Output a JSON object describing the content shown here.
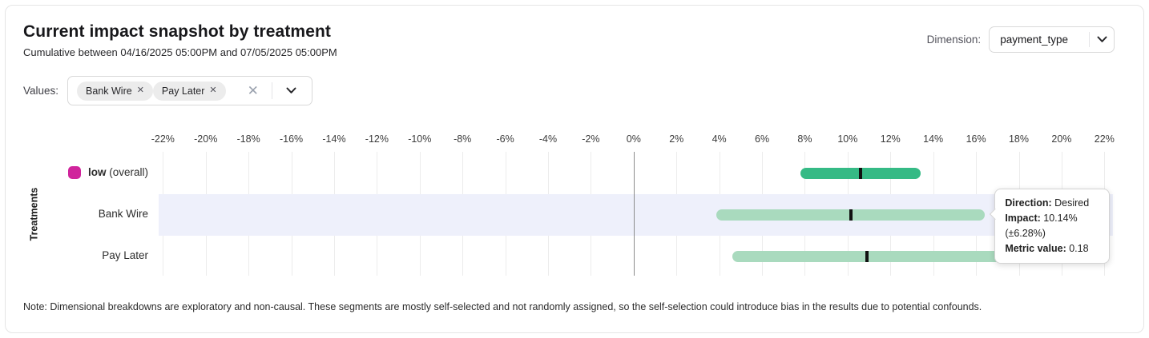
{
  "header": {
    "title": "Current impact snapshot by treatment",
    "subtitle": "Cumulative between 04/16/2025 05:00PM and 07/05/2025 05:00PM",
    "dimension_label": "Dimension:",
    "dimension_value": "payment_type"
  },
  "filters": {
    "label": "Values:",
    "chips": [
      {
        "label": "Bank Wire",
        "remove_icon": "x-icon"
      },
      {
        "label": "Pay Later",
        "remove_icon": "x-icon"
      }
    ],
    "clear_icon": "x-icon",
    "expand_icon": "chevron-down-icon"
  },
  "chart_data": {
    "type": "range-bar",
    "ylabel": "Treatments",
    "x_tick_min": -22,
    "x_tick_max": 22,
    "x_tick_step": 2,
    "x_tick_suffix": "%",
    "xlim": [
      -22.2,
      22.4
    ],
    "grid": true,
    "zero_line": true,
    "rows": [
      {
        "label": "low",
        "suffix": " (overall)",
        "bold_label": true,
        "highlighted": false,
        "swatch_color": "#d0249c",
        "bar_color": "#35ba85",
        "impact_pct": 10.6,
        "low_pct": 7.8,
        "high_pct": 13.4
      },
      {
        "label": "Bank Wire",
        "suffix": "",
        "bold_label": false,
        "highlighted": true,
        "swatch_color": null,
        "bar_color": "#a9dabe",
        "impact_pct": 10.14,
        "low_pct": 3.86,
        "high_pct": 16.42
      },
      {
        "label": "Pay Later",
        "suffix": "",
        "bold_label": false,
        "highlighted": false,
        "swatch_color": null,
        "bar_color": "#a9dabe",
        "impact_pct": 10.9,
        "low_pct": 4.6,
        "high_pct": 17.2
      }
    ],
    "tooltip": {
      "target_row": "Bank Wire",
      "direction_label": "Direction:",
      "direction_value": "Desired",
      "impact_label": "Impact:",
      "impact_value": "10.14% (±6.28%)",
      "metric_label": "Metric value:",
      "metric_value": "0.18"
    }
  },
  "note": "Note: Dimensional breakdowns are exploratory and non-causal. These segments are mostly self-selected and not randomly assigned, so the self-selection could introduce bias in the results due to potential confounds.",
  "colors": {
    "accent_magenta": "#d0249c",
    "bar_dark_green": "#35ba85",
    "bar_light_green": "#a9dabe",
    "row_highlight": "#eef0fb",
    "gridline": "#ececec",
    "zero_line": "#8c8c8c"
  }
}
